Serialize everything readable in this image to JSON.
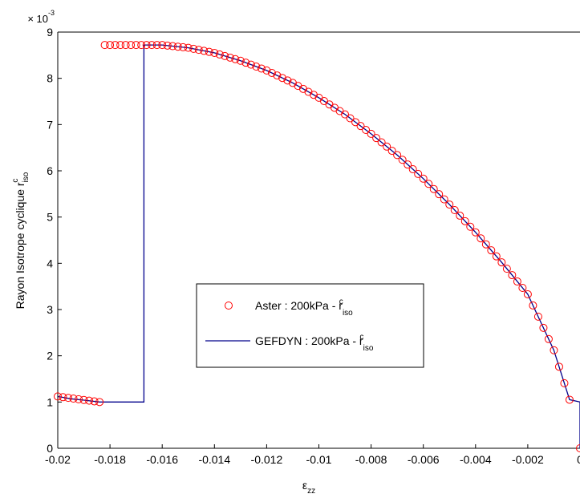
{
  "chart_data": {
    "type": "line",
    "title": "",
    "xlabel": "ε_zz",
    "ylabel": "Rayon Isotrope cyclique r^c_iso",
    "xlim": [
      -0.02,
      0
    ],
    "ylim": [
      0,
      9
    ],
    "y_exponent": "× 10",
    "y_exponent_power": "-3",
    "xticks": [
      "-0.02",
      "-0.018",
      "-0.016",
      "-0.014",
      "-0.012",
      "-0.01",
      "-0.008",
      "-0.006",
      "-0.004",
      "-0.002",
      "0"
    ],
    "xtick_values": [
      -0.02,
      -0.018,
      -0.016,
      -0.014,
      -0.012,
      -0.01,
      -0.008,
      -0.006,
      -0.004,
      -0.002,
      0
    ],
    "yticks": [
      "0",
      "1",
      "2",
      "3",
      "4",
      "5",
      "6",
      "7",
      "8",
      "9"
    ],
    "ytick_values": [
      0,
      1,
      2,
      3,
      4,
      5,
      6,
      7,
      8,
      9
    ],
    "grid": false,
    "legend_position": "center-left",
    "series": [
      {
        "name": "Aster : 200kPa - r^c_iso",
        "label_main": "Aster : 200kPa - r",
        "label_sup": "c",
        "label_sub": "iso",
        "marker": "circle",
        "color": "#ff0000",
        "segments": [
          {
            "x_start": -0.02,
            "x_end": -0.0184,
            "count": 9,
            "curve": "tail"
          },
          {
            "x_start": -0.0182,
            "x_end": -0.0168,
            "count": 8,
            "curve": "flat"
          },
          {
            "x_start": -0.0166,
            "x_end": -0.0004,
            "count": 82,
            "curve": "main"
          },
          {
            "points": [
              [
                0,
                0
              ]
            ]
          }
        ]
      },
      {
        "name": "GEFDYN : 200kPa - r^c_iso",
        "label_main": "GEFDYN : 200kPa - r",
        "label_sup": "c",
        "label_sub": "iso",
        "marker": "line",
        "color": "#00008b",
        "points": [
          [
            -0.02,
            1.12
          ],
          [
            -0.0195,
            1.07
          ],
          [
            -0.019,
            1.04
          ],
          [
            -0.0184,
            1.0
          ],
          [
            -0.0167,
            1.0
          ],
          [
            -0.0167,
            8.72
          ],
          [
            -0.016,
            8.72
          ],
          [
            -0.015,
            8.66
          ],
          [
            -0.014,
            8.55
          ],
          [
            -0.013,
            8.38
          ],
          [
            -0.012,
            8.17
          ],
          [
            -0.011,
            7.9
          ],
          [
            -0.01,
            7.58
          ],
          [
            -0.009,
            7.22
          ],
          [
            -0.008,
            6.8
          ],
          [
            -0.007,
            6.34
          ],
          [
            -0.006,
            5.83
          ],
          [
            -0.005,
            5.27
          ],
          [
            -0.004,
            4.67
          ],
          [
            -0.003,
            4.02
          ],
          [
            -0.002,
            3.33
          ],
          [
            -0.001,
            2.12
          ],
          [
            -0.0004,
            1.05
          ],
          [
            0,
            1.0
          ],
          [
            0,
            0
          ]
        ]
      }
    ]
  }
}
